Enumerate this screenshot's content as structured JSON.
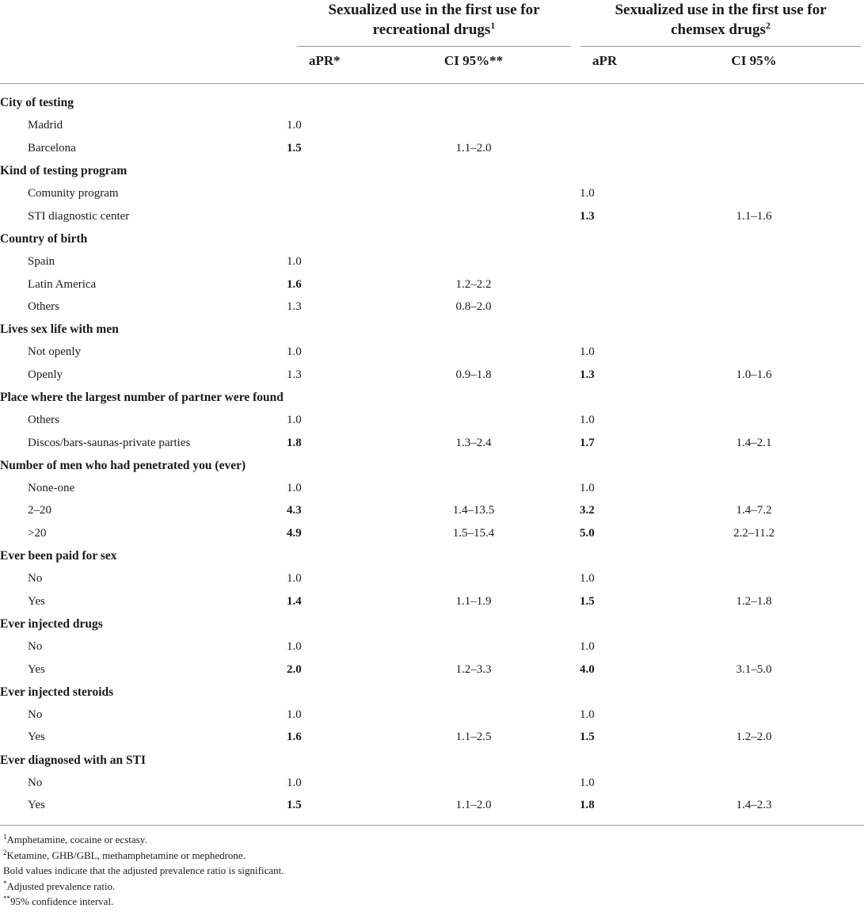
{
  "header": {
    "group1": {
      "line1": "Sexualized use in the first use for",
      "line2": "recreational drugs",
      "sup": "1"
    },
    "group2": {
      "line1": "Sexualized use in the first use for",
      "line2": "chemsex drugs",
      "sup": "2"
    },
    "col1": "aPR*",
    "col2": "CI 95%**",
    "col3": "aPR",
    "col4": "CI 95%"
  },
  "rows": [
    {
      "type": "section",
      "label": "City of testing",
      "v1": "",
      "b1": false,
      "v2": "",
      "v3": "",
      "b3": false,
      "v4": ""
    },
    {
      "type": "item",
      "label": "Madrid",
      "v1": "1.0",
      "b1": false,
      "v2": "",
      "v3": "",
      "b3": false,
      "v4": ""
    },
    {
      "type": "item",
      "label": "Barcelona",
      "v1": "1.5",
      "b1": true,
      "v2": "1.1–2.0",
      "v3": "",
      "b3": false,
      "v4": ""
    },
    {
      "type": "section",
      "label": "Kind of testing program",
      "v1": "",
      "b1": false,
      "v2": "",
      "v3": "",
      "b3": false,
      "v4": ""
    },
    {
      "type": "item",
      "label": "Comunity program",
      "v1": "",
      "b1": false,
      "v2": "",
      "v3": "1.0",
      "b3": false,
      "v4": ""
    },
    {
      "type": "item",
      "label": "STI diagnostic center",
      "v1": "",
      "b1": false,
      "v2": "",
      "v3": "1.3",
      "b3": true,
      "v4": "1.1–1.6"
    },
    {
      "type": "section",
      "label": "Country of birth",
      "v1": "",
      "b1": false,
      "v2": "",
      "v3": "",
      "b3": false,
      "v4": ""
    },
    {
      "type": "item",
      "label": "Spain",
      "v1": "1.0",
      "b1": false,
      "v2": "",
      "v3": "",
      "b3": false,
      "v4": ""
    },
    {
      "type": "item",
      "label": "Latin America",
      "v1": "1.6",
      "b1": true,
      "v2": "1.2–2.2",
      "v3": "",
      "b3": false,
      "v4": ""
    },
    {
      "type": "item",
      "label": "Others",
      "v1": "1.3",
      "b1": false,
      "v2": "0.8–2.0",
      "v3": "",
      "b3": false,
      "v4": ""
    },
    {
      "type": "section",
      "label": "Lives sex life with men",
      "v1": "",
      "b1": false,
      "v2": "",
      "v3": "",
      "b3": false,
      "v4": ""
    },
    {
      "type": "item",
      "label": "Not openly",
      "v1": "1.0",
      "b1": false,
      "v2": "",
      "v3": "1.0",
      "b3": false,
      "v4": ""
    },
    {
      "type": "item",
      "label": "Openly",
      "v1": "1.3",
      "b1": false,
      "v2": "0.9–1.8",
      "v3": "1.3",
      "b3": true,
      "v4": "1.0–1.6"
    },
    {
      "type": "section",
      "label": "Place where the largest number of partner were found",
      "v1": "",
      "b1": false,
      "v2": "",
      "v3": "",
      "b3": false,
      "v4": ""
    },
    {
      "type": "item",
      "label": "Others",
      "v1": "1.0",
      "b1": false,
      "v2": "",
      "v3": "1.0",
      "b3": false,
      "v4": ""
    },
    {
      "type": "item",
      "label": "Discos/bars-saunas-private parties",
      "v1": "1.8",
      "b1": true,
      "v2": "1.3–2.4",
      "v3": "1.7",
      "b3": true,
      "v4": "1.4–2.1"
    },
    {
      "type": "section",
      "label": "Number of men who had penetrated you (ever)",
      "v1": "",
      "b1": false,
      "v2": "",
      "v3": "",
      "b3": false,
      "v4": ""
    },
    {
      "type": "item",
      "label": "None-one",
      "v1": "1.0",
      "b1": false,
      "v2": "",
      "v3": "1.0",
      "b3": false,
      "v4": ""
    },
    {
      "type": "item",
      "label": "2–20",
      "v1": "4.3",
      "b1": true,
      "v2": "1.4–13.5",
      "v3": "3.2",
      "b3": true,
      "v4": "1.4–7.2"
    },
    {
      "type": "item",
      "label": ">20",
      "v1": "4.9",
      "b1": true,
      "v2": "1.5–15.4",
      "v3": "5.0",
      "b3": true,
      "v4": "2.2–11.2"
    },
    {
      "type": "section",
      "label": "Ever been paid for sex",
      "v1": "",
      "b1": false,
      "v2": "",
      "v3": "",
      "b3": false,
      "v4": ""
    },
    {
      "type": "item",
      "label": "No",
      "v1": "1.0",
      "b1": false,
      "v2": "",
      "v3": "1.0",
      "b3": false,
      "v4": ""
    },
    {
      "type": "item",
      "label": "Yes",
      "v1": "1.4",
      "b1": true,
      "v2": "1.1–1.9",
      "v3": "1.5",
      "b3": true,
      "v4": "1.2–1.8"
    },
    {
      "type": "section",
      "label": "Ever injected drugs",
      "v1": "",
      "b1": false,
      "v2": "",
      "v3": "",
      "b3": false,
      "v4": ""
    },
    {
      "type": "item",
      "label": "No",
      "v1": "1.0",
      "b1": false,
      "v2": "",
      "v3": "1.0",
      "b3": false,
      "v4": ""
    },
    {
      "type": "item",
      "label": "Yes",
      "v1": "2.0",
      "b1": true,
      "v2": "1.2–3.3",
      "v3": "4.0",
      "b3": true,
      "v4": "3.1–5.0"
    },
    {
      "type": "section",
      "label": "Ever injected steroids",
      "v1": "",
      "b1": false,
      "v2": "",
      "v3": "",
      "b3": false,
      "v4": ""
    },
    {
      "type": "item",
      "label": "No",
      "v1": "1.0",
      "b1": false,
      "v2": "",
      "v3": "1.0",
      "b3": false,
      "v4": ""
    },
    {
      "type": "item",
      "label": "Yes",
      "v1": "1.6",
      "b1": true,
      "v2": "1.1–2.5",
      "v3": "1.5",
      "b3": true,
      "v4": "1.2–2.0"
    },
    {
      "type": "section",
      "label": "Ever diagnosed with an STI",
      "v1": "",
      "b1": false,
      "v2": "",
      "v3": "",
      "b3": false,
      "v4": ""
    },
    {
      "type": "item",
      "label": "No",
      "v1": "1.0",
      "b1": false,
      "v2": "",
      "v3": "1.0",
      "b3": false,
      "v4": ""
    },
    {
      "type": "item",
      "label": "Yes",
      "v1": "1.5",
      "b1": true,
      "v2": "1.1–2.0",
      "v3": "1.8",
      "b3": true,
      "v4": "1.4–2.3"
    }
  ],
  "footnotes": {
    "n1_sup": "1",
    "n1": "Amphetamine, cocaine or ecstasy.",
    "n2_sup": "2",
    "n2": "Ketamine, GHB/GBL, methamphetamine or mephedrone.",
    "n3": "Bold values indicate that the adjusted prevalence ratio is significant.",
    "n4_sup": "*",
    "n4": "Adjusted prevalence ratio.",
    "n5_sup": "**",
    "n5": "95% confidence interval."
  }
}
